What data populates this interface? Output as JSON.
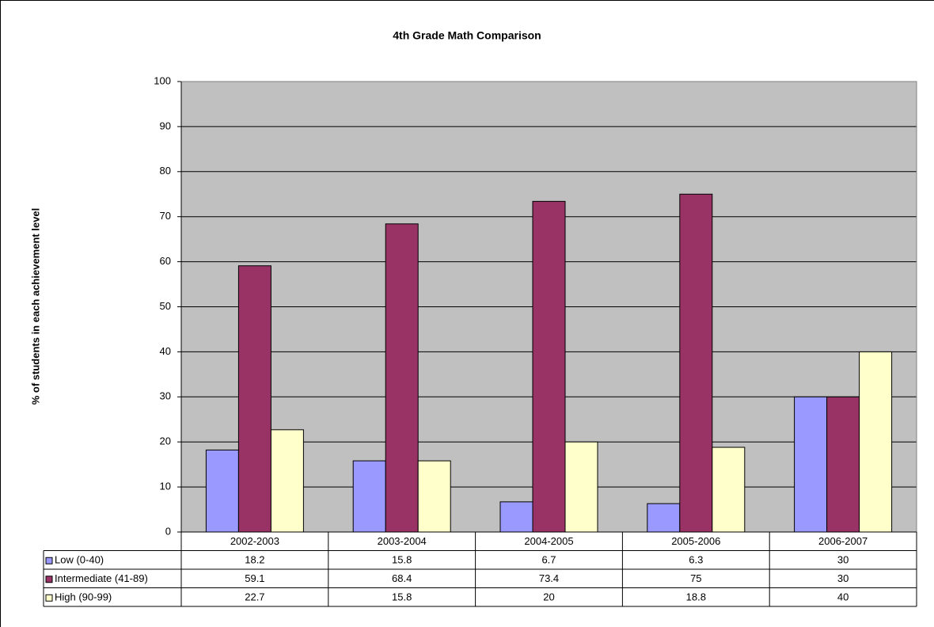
{
  "chart_data": {
    "type": "bar",
    "title": "4th Grade Math Comparison",
    "y_label": "% of students in each achievement level",
    "categories": [
      "2002-2003",
      "2003-2004",
      "2004-2005",
      "2005-2006",
      "2006-2007"
    ],
    "series": [
      {
        "name": "Low (0-40)",
        "color": "#9999ff",
        "values": [
          18.2,
          15.8,
          6.7,
          6.3,
          30
        ]
      },
      {
        "name": "Intermediate (41-89)",
        "color": "#993366",
        "values": [
          59.1,
          68.4,
          73.4,
          75,
          30
        ]
      },
      {
        "name": "High (90-99)",
        "color": "#ffffcc",
        "values": [
          22.7,
          15.8,
          20,
          18.8,
          40
        ]
      }
    ],
    "ylim": [
      0,
      100
    ],
    "yticks": [
      0,
      10,
      20,
      30,
      40,
      50,
      60,
      70,
      80,
      90,
      100
    ],
    "grid": true,
    "data_table": true
  }
}
